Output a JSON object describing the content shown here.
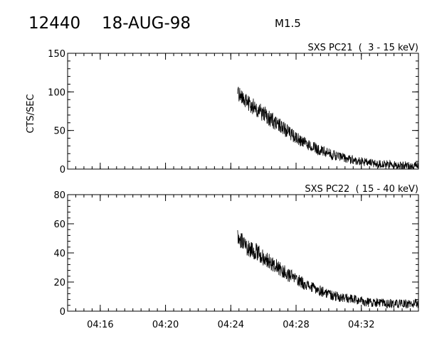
{
  "header": {
    "event_id": "12440",
    "date": "18-AUG-98",
    "flare_class": "M1.5"
  },
  "chart_data": [
    {
      "type": "line",
      "title": "SXS PC21  (  3 - 15 keV)",
      "ylabel": "CTS/SEC",
      "xlabel": "",
      "x_start": "04:14:00",
      "x_end": "04:35:30",
      "xticks": [
        "04:16",
        "04:20",
        "04:24",
        "04:28",
        "04:32"
      ],
      "ylim": [
        0,
        150
      ],
      "yticks": [
        0,
        50,
        100,
        150
      ],
      "grid": false,
      "series": [
        {
          "x": [
            "04:24:25",
            "04:24:35",
            "04:25:00",
            "04:25:30",
            "04:26:00",
            "04:26:30",
            "04:27:00",
            "04:27:30",
            "04:28:00",
            "04:28:30",
            "04:29:00",
            "04:29:30",
            "04:30:00",
            "04:30:30",
            "04:31:00",
            "04:31:30",
            "04:32:00",
            "04:32:30",
            "04:33:00",
            "04:33:30",
            "04:34:00",
            "04:34:30",
            "04:35:00",
            "04:35:30"
          ],
          "values": [
            98,
            94,
            87,
            80,
            72,
            64,
            56,
            48,
            40,
            34,
            29,
            24,
            20,
            17,
            14,
            12,
            10,
            8,
            7,
            6,
            5,
            5,
            4,
            4
          ]
        }
      ]
    },
    {
      "type": "line",
      "title": "SXS PC22  ( 15 - 40 keV)",
      "ylabel": "",
      "xlabel": "",
      "x_start": "04:14:00",
      "x_end": "04:35:30",
      "xticks": [
        "04:16",
        "04:20",
        "04:24",
        "04:28",
        "04:32"
      ],
      "ylim": [
        0,
        80
      ],
      "yticks": [
        0,
        20,
        40,
        60,
        80
      ],
      "grid": false,
      "series": [
        {
          "x": [
            "04:24:25",
            "04:24:35",
            "04:25:00",
            "04:25:30",
            "04:26:00",
            "04:26:30",
            "04:27:00",
            "04:27:30",
            "04:28:00",
            "04:28:30",
            "04:29:00",
            "04:29:30",
            "04:30:00",
            "04:30:30",
            "04:31:00",
            "04:31:30",
            "04:32:00",
            "04:32:30",
            "04:33:00",
            "04:33:30",
            "04:34:00",
            "04:34:30",
            "04:35:00",
            "04:35:30"
          ],
          "values": [
            52,
            49,
            44,
            41,
            37,
            33,
            29,
            25,
            22,
            19,
            16,
            14,
            12,
            10,
            9,
            8,
            7,
            6,
            6,
            5,
            5,
            5,
            5,
            5
          ]
        }
      ]
    }
  ]
}
